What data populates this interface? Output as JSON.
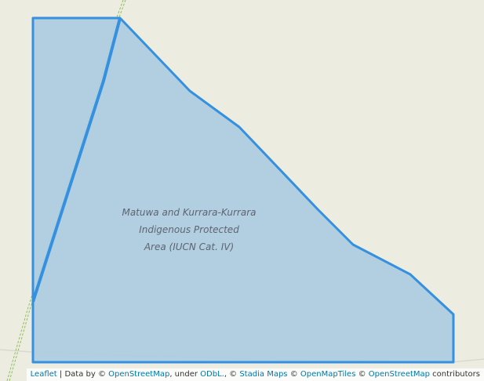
{
  "map": {
    "area_name_lines": [
      "Matuwa and Kurrara-Kurrara",
      "Indigenous Protected",
      "Area (IUCN Cat. IV)"
    ],
    "colors": {
      "background": "#ecece0",
      "polygon_fill": "#aecde0",
      "polygon_stroke": "#3590e0",
      "track": "#8fbf5a",
      "road": "#d9d9d2"
    }
  },
  "attribution": {
    "leaflet": "Leaflet",
    "separator": " | Data by © ",
    "openstreetmap": "OpenStreetMap",
    "under": ", under ",
    "odbl": "ODbL.",
    "comma_copy": ", © ",
    "stadia": "Stadia Maps",
    "copy1": " © ",
    "openmaptiles": "OpenMapTiles",
    "copy2": " © ",
    "openstreetmap2": "OpenStreetMap",
    "contributors": " contributors"
  }
}
